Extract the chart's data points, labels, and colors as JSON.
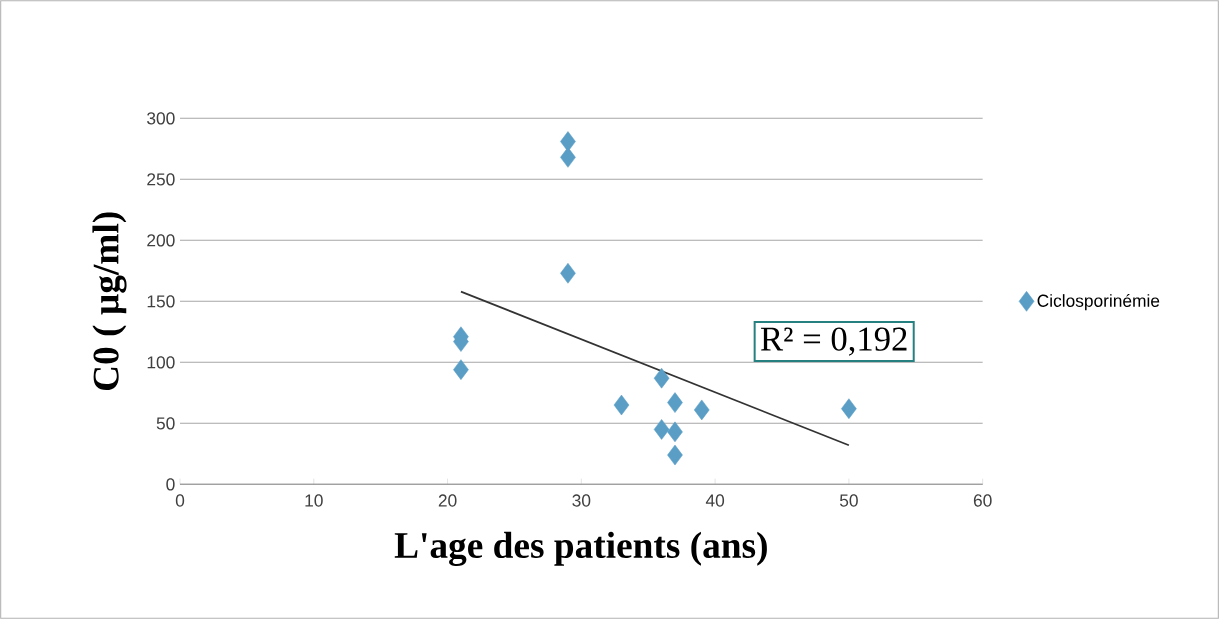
{
  "chart_data": {
    "type": "scatter",
    "xlabel": "L'age des patients (ans)",
    "ylabel": "C0 ( µg/ml)",
    "xlim": [
      0,
      60
    ],
    "xticks": [
      0,
      10,
      20,
      30,
      40,
      50,
      60
    ],
    "ylim": [
      0,
      300
    ],
    "yticks": [
      0,
      50,
      100,
      150,
      200,
      250,
      300
    ],
    "grid": "y",
    "legend": "right",
    "series": [
      {
        "name": "Ciclosporinémie",
        "color": "#5a9ec6",
        "marker": "diamond",
        "x": [
          21,
          21,
          21,
          29,
          29,
          29,
          33,
          36,
          36,
          37,
          37,
          37,
          39,
          50
        ],
        "values": [
          121,
          117,
          94,
          281,
          268,
          173,
          65,
          87,
          45,
          67,
          43,
          24,
          61,
          62
        ]
      },
      {
        "type": "line",
        "color": "#333333",
        "marker": "none",
        "x": [
          21,
          50
        ],
        "values": [
          158,
          32
        ]
      }
    ],
    "annotations": [
      "R² = 0,192"
    ]
  }
}
